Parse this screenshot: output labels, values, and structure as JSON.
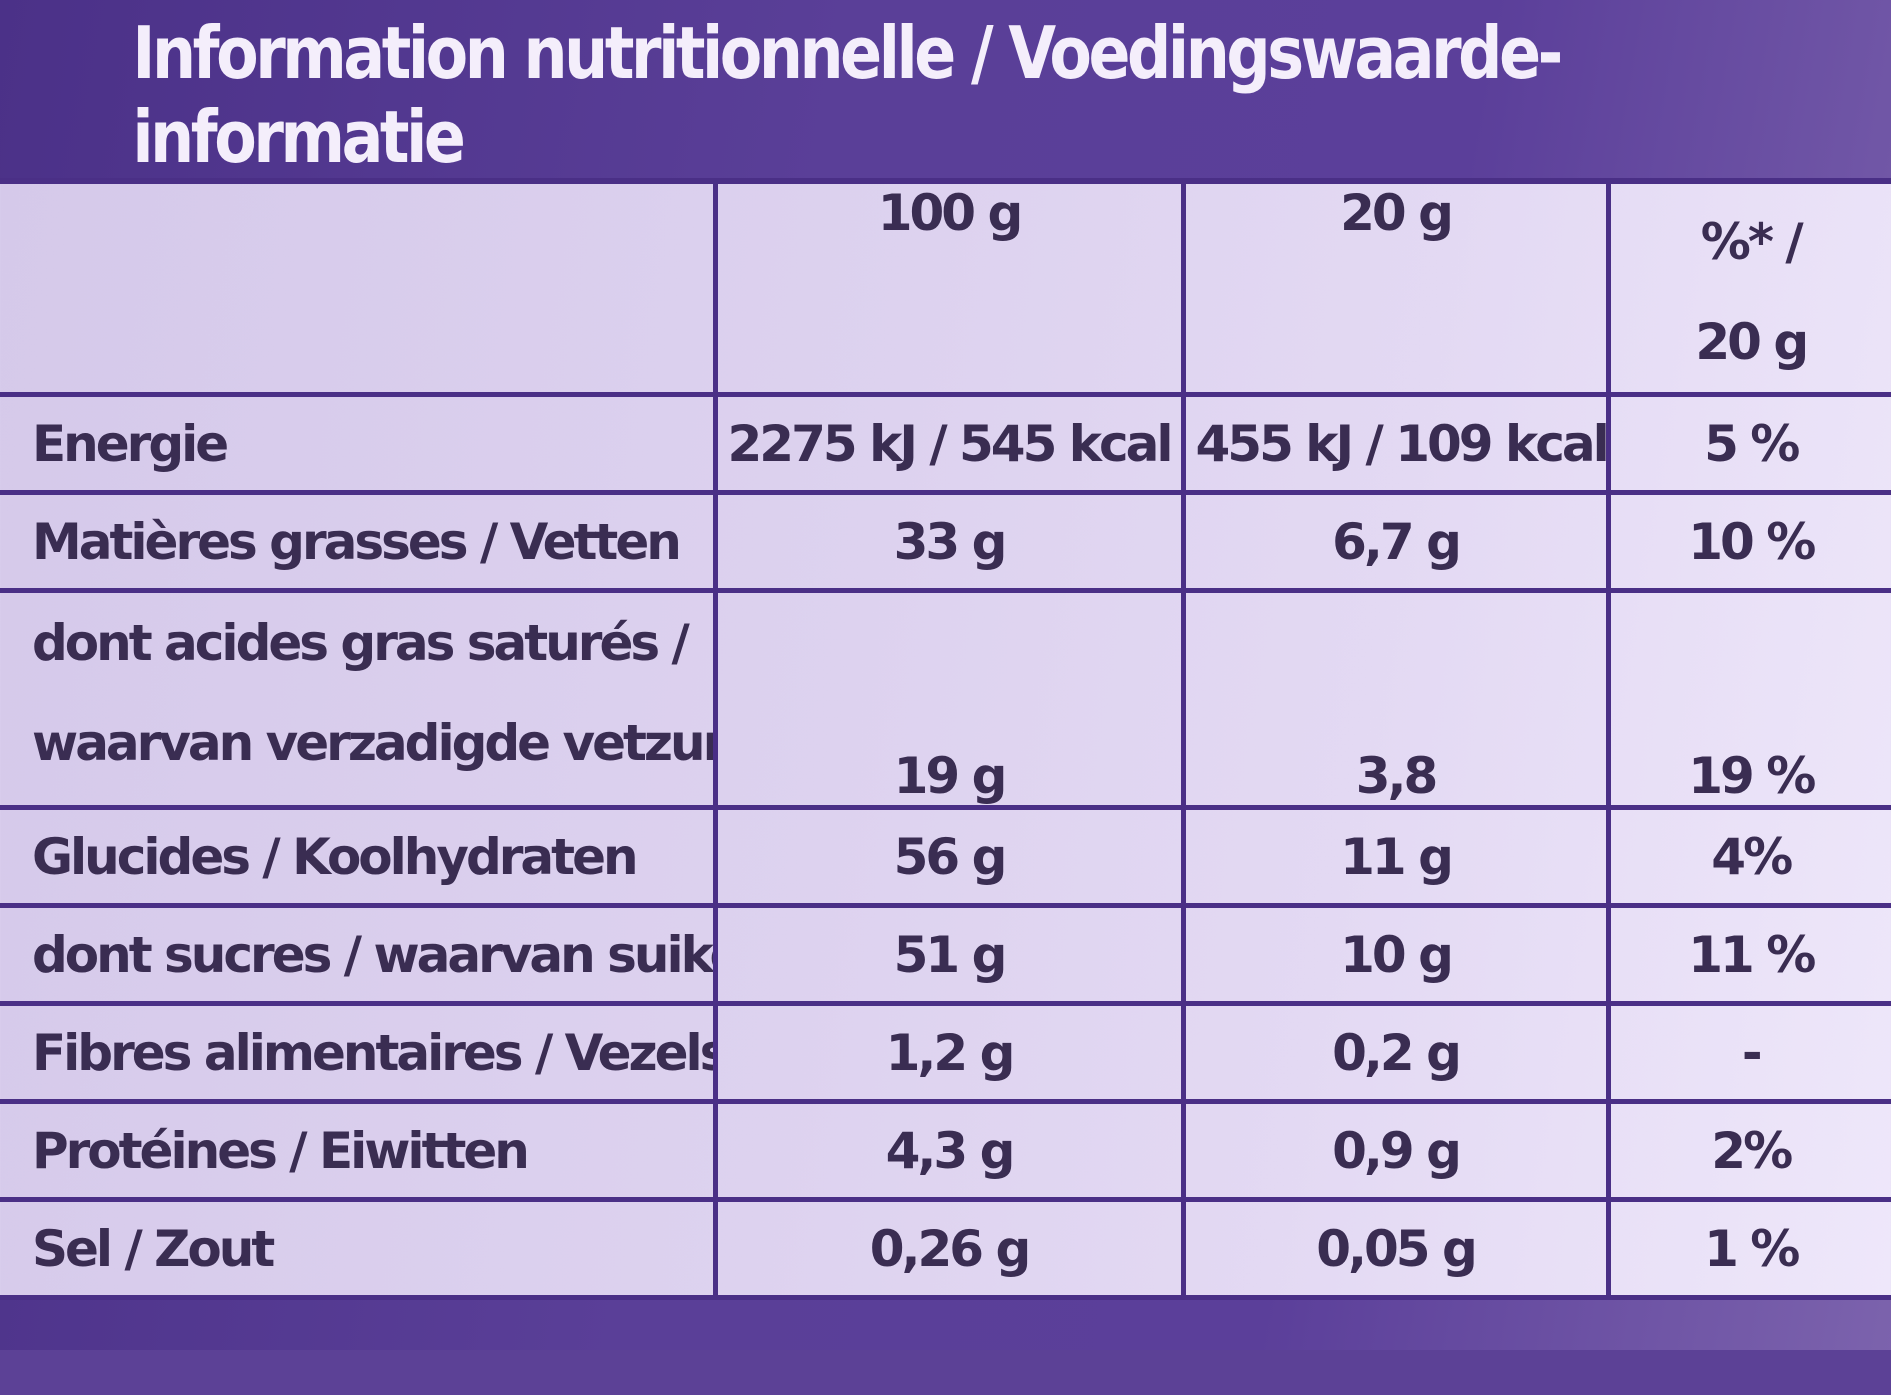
{
  "title": "Information nutritionnelle / Voedingswaarde-informatie",
  "columns": {
    "per100": "100 g",
    "per20": "20 g",
    "pct_line1": "%* /",
    "pct_line2": "20 g"
  },
  "rows": [
    {
      "label": "Energie",
      "per100": "2275 kJ / 545 kcal",
      "per20": "455 kJ / 109 kcal",
      "pct": "5 %"
    },
    {
      "label": "Matières grasses / Vetten",
      "per100": "33 g",
      "per20": "6,7 g",
      "pct": "10 %"
    },
    {
      "label_line1": "dont acides gras saturés /",
      "label_line2": "waarvan verzadigde vetzuren",
      "per100": "19 g",
      "per20": "3,8",
      "pct": "19 %"
    },
    {
      "label": "Glucides / Koolhydraten",
      "per100": "56 g",
      "per20": "11 g",
      "pct": "4%"
    },
    {
      "label": "dont sucres / waarvan suikers",
      "per100": "51 g",
      "per20": "10 g",
      "pct": "11 %"
    },
    {
      "label": "Fibres alimentaires / Vezels",
      "per100": "1,2 g",
      "per20": "0,2 g",
      "pct": "-"
    },
    {
      "label": "Protéines / Eiwitten",
      "per100": "4,3 g",
      "per20": "0,9 g",
      "pct": "2%"
    },
    {
      "label": "Sel / Zout",
      "per100": "0,26 g",
      "per20": "0,05 g",
      "pct": "1 %"
    }
  ],
  "colors": {
    "frame": "#4a2f86",
    "cell_background": "#ddd2ef",
    "text": "#3a2d52",
    "title_text": "#f4eefb"
  }
}
